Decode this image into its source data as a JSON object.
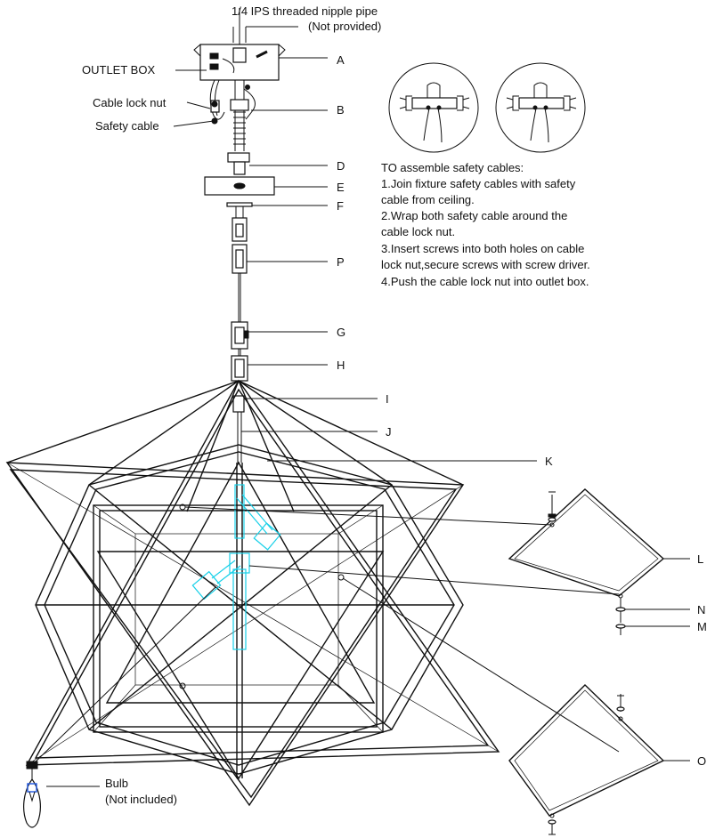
{
  "top_note": {
    "line1": "1/4 IPS threaded nipple pipe",
    "line2": "(Not provided)"
  },
  "left_labels": {
    "outlet_box": "OUTLET BOX",
    "cable_lock_nut": "Cable lock nut",
    "safety_cable": "Safety  cable"
  },
  "parts": {
    "A": "A",
    "B": "B",
    "D": "D",
    "E": "E",
    "F": "F",
    "P": "P",
    "G": "G",
    "H": "H",
    "I": "I",
    "J": "J",
    "K": "K",
    "L": "L",
    "N": "N",
    "M": "M",
    "O": "O"
  },
  "instructions": {
    "heading": "TO assemble safety cables:",
    "lines": [
      "1.Join fixture safety cables with safety",
      "cable from ceiling.",
      "2.Wrap both safety cable around the",
      "cable lock nut.",
      "3.Insert screws into both holes on cable",
      "lock nut,secure screws with screw driver.",
      "4.Push the cable lock nut into outlet box."
    ]
  },
  "bulb": {
    "line1": "Bulb",
    "line2": "(Not included)"
  }
}
